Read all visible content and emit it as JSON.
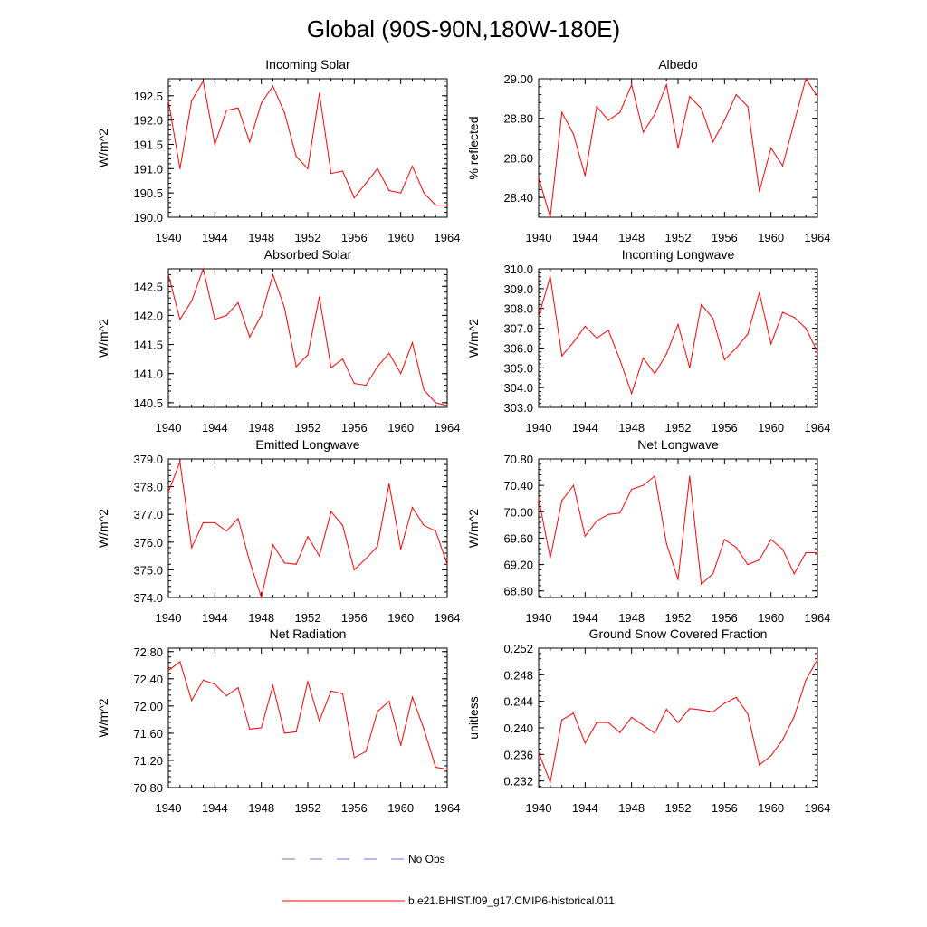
{
  "figure_title": "Global (90S-90N,180W-180E)",
  "colors": {
    "model_line": "#ff0000",
    "obs_line": "#6677cc",
    "axes": "#000000"
  },
  "legend": {
    "obs_label": "No Obs",
    "model_label": "b.e21.BHIST.f09_g17.CMIP6-historical.011"
  },
  "chart_data": [
    {
      "type": "line",
      "title": "Incoming Solar",
      "ylabel": "W/m^2",
      "xlim": [
        1940,
        1964
      ],
      "ylim": [
        190.0,
        192.85
      ],
      "xticks": [
        "1940",
        "1944",
        "1948",
        "1952",
        "1956",
        "1960",
        "1964"
      ],
      "yticks": [
        "190.0",
        "190.5",
        "191.0",
        "191.5",
        "192.0",
        "192.5"
      ],
      "x": [
        1940,
        1941,
        1942,
        1943,
        1944,
        1945,
        1946,
        1947,
        1948,
        1949,
        1950,
        1951,
        1952,
        1953,
        1954,
        1955,
        1956,
        1957,
        1958,
        1959,
        1960,
        1961,
        1962,
        1963,
        1964
      ],
      "series": [
        {
          "values": [
            192.4,
            191.0,
            192.4,
            192.8,
            191.5,
            192.2,
            192.25,
            191.55,
            192.35,
            192.7,
            192.15,
            191.25,
            191.0,
            192.55,
            190.9,
            190.95,
            190.4,
            190.7,
            191.0,
            190.55,
            190.5,
            191.05,
            190.5,
            190.25,
            190.25
          ]
        }
      ]
    },
    {
      "type": "line",
      "title": "Albedo",
      "ylabel": "% reflected",
      "xlim": [
        1940,
        1964
      ],
      "ylim": [
        28.3,
        29.0
      ],
      "xticks": [
        "1940",
        "1944",
        "1948",
        "1952",
        "1956",
        "1960",
        "1964"
      ],
      "yticks": [
        "28.40",
        "28.60",
        "28.80",
        "29.00"
      ],
      "x": [
        1940,
        1941,
        1942,
        1943,
        1944,
        1945,
        1946,
        1947,
        1948,
        1949,
        1950,
        1951,
        1952,
        1953,
        1954,
        1955,
        1956,
        1957,
        1958,
        1959,
        1960,
        1961,
        1962,
        1963,
        1964
      ],
      "series": [
        {
          "values": [
            28.5,
            28.3,
            28.83,
            28.72,
            28.51,
            28.86,
            28.79,
            28.83,
            28.97,
            28.73,
            28.82,
            28.97,
            28.65,
            28.91,
            28.85,
            28.68,
            28.79,
            28.92,
            28.86,
            28.43,
            28.65,
            28.56,
            28.78,
            29.0,
            28.91
          ]
        }
      ]
    },
    {
      "type": "line",
      "title": "Absorbed Solar",
      "ylabel": "W/m^2",
      "xlim": [
        1940,
        1964
      ],
      "ylim": [
        140.42,
        142.8
      ],
      "xticks": [
        "1940",
        "1944",
        "1948",
        "1952",
        "1956",
        "1960",
        "1964"
      ],
      "yticks": [
        "140.5",
        "141.0",
        "141.5",
        "142.0",
        "142.5"
      ],
      "x": [
        1940,
        1941,
        1942,
        1943,
        1944,
        1945,
        1946,
        1947,
        1948,
        1949,
        1950,
        1951,
        1952,
        1953,
        1954,
        1955,
        1956,
        1957,
        1958,
        1959,
        1960,
        1961,
        1962,
        1963,
        1964
      ],
      "series": [
        {
          "values": [
            142.7,
            141.93,
            142.25,
            142.8,
            141.93,
            142.0,
            142.22,
            141.63,
            142.0,
            142.7,
            142.13,
            141.12,
            141.32,
            142.32,
            141.1,
            141.25,
            140.83,
            140.8,
            141.12,
            141.35,
            141.0,
            141.53,
            140.72,
            140.5,
            140.45
          ]
        }
      ]
    },
    {
      "type": "line",
      "title": "Incoming Longwave",
      "ylabel": "W/m^2",
      "xlim": [
        1940,
        1964
      ],
      "ylim": [
        303.0,
        310.0
      ],
      "xticks": [
        "1940",
        "1944",
        "1948",
        "1952",
        "1956",
        "1960",
        "1964"
      ],
      "yticks": [
        "303.0",
        "304.0",
        "305.0",
        "306.0",
        "307.0",
        "308.0",
        "309.0",
        "310.0"
      ],
      "x": [
        1940,
        1941,
        1942,
        1943,
        1944,
        1945,
        1946,
        1947,
        1948,
        1949,
        1950,
        1951,
        1952,
        1953,
        1954,
        1955,
        1956,
        1957,
        1958,
        1959,
        1960,
        1961,
        1962,
        1963,
        1964
      ],
      "series": [
        {
          "values": [
            307.6,
            309.6,
            305.6,
            306.3,
            307.1,
            306.5,
            306.9,
            305.4,
            303.7,
            305.5,
            304.7,
            305.7,
            307.2,
            305.0,
            308.2,
            307.5,
            305.4,
            306.0,
            306.7,
            308.8,
            306.2,
            307.8,
            307.55,
            307.0,
            305.8
          ]
        }
      ]
    },
    {
      "type": "line",
      "title": "Emitted Longwave",
      "ylabel": "W/m^2",
      "xlim": [
        1940,
        1964
      ],
      "ylim": [
        374.0,
        379.0
      ],
      "xticks": [
        "1940",
        "1944",
        "1948",
        "1952",
        "1956",
        "1960",
        "1964"
      ],
      "yticks": [
        "374.0",
        "375.0",
        "376.0",
        "377.0",
        "378.0",
        "379.0"
      ],
      "x": [
        1940,
        1941,
        1942,
        1943,
        1944,
        1945,
        1946,
        1947,
        1948,
        1949,
        1950,
        1951,
        1952,
        1953,
        1954,
        1955,
        1956,
        1957,
        1958,
        1959,
        1960,
        1961,
        1962,
        1963,
        1964
      ],
      "series": [
        {
          "values": [
            377.8,
            378.9,
            375.8,
            376.7,
            376.7,
            376.4,
            376.85,
            375.3,
            374.0,
            375.9,
            375.25,
            375.2,
            376.2,
            375.5,
            377.1,
            376.6,
            375.0,
            375.4,
            375.85,
            378.1,
            375.75,
            377.25,
            376.6,
            376.4,
            375.2
          ]
        }
      ]
    },
    {
      "type": "line",
      "title": "Net Longwave",
      "ylabel": "W/m^2",
      "xlim": [
        1940,
        1964
      ],
      "ylim": [
        68.7,
        70.8
      ],
      "xticks": [
        "1940",
        "1944",
        "1948",
        "1952",
        "1956",
        "1960",
        "1964"
      ],
      "yticks": [
        "68.80",
        "69.20",
        "69.60",
        "70.00",
        "70.40",
        "70.80"
      ],
      "x": [
        1940,
        1941,
        1942,
        1943,
        1944,
        1945,
        1946,
        1947,
        1948,
        1949,
        1950,
        1951,
        1952,
        1953,
        1954,
        1955,
        1956,
        1957,
        1958,
        1959,
        1960,
        1961,
        1962,
        1963,
        1964
      ],
      "series": [
        {
          "values": [
            70.2,
            69.3,
            70.17,
            70.4,
            69.63,
            69.86,
            69.96,
            69.98,
            70.34,
            70.4,
            70.54,
            69.52,
            68.97,
            70.54,
            68.9,
            69.06,
            69.58,
            69.46,
            69.2,
            69.27,
            69.58,
            69.43,
            69.06,
            69.38,
            69.38
          ]
        }
      ]
    },
    {
      "type": "line",
      "title": "Net Radiation",
      "ylabel": "W/m^2",
      "xlim": [
        1940,
        1964
      ],
      "ylim": [
        70.8,
        72.85
      ],
      "xticks": [
        "1940",
        "1944",
        "1948",
        "1952",
        "1956",
        "1960",
        "1964"
      ],
      "yticks": [
        "70.80",
        "71.20",
        "71.60",
        "72.00",
        "72.40",
        "72.80"
      ],
      "x": [
        1940,
        1941,
        1942,
        1943,
        1944,
        1945,
        1946,
        1947,
        1948,
        1949,
        1950,
        1951,
        1952,
        1953,
        1954,
        1955,
        1956,
        1957,
        1958,
        1959,
        1960,
        1961,
        1962,
        1963,
        1964
      ],
      "series": [
        {
          "values": [
            72.52,
            72.65,
            72.08,
            72.38,
            72.32,
            72.15,
            72.27,
            71.66,
            71.68,
            72.3,
            71.6,
            71.62,
            72.36,
            71.78,
            72.22,
            72.18,
            71.24,
            71.33,
            71.92,
            72.07,
            71.42,
            72.13,
            71.66,
            71.1,
            71.07
          ]
        }
      ]
    },
    {
      "type": "line",
      "title": "Ground Snow Covered Fraction",
      "ylabel": "unitless",
      "xlim": [
        1940,
        1964
      ],
      "ylim": [
        0.231,
        0.252
      ],
      "xticks": [
        "1940",
        "1944",
        "1948",
        "1952",
        "1956",
        "1960",
        "1964"
      ],
      "yticks": [
        "0.232",
        "0.236",
        "0.240",
        "0.244",
        "0.248",
        "0.252"
      ],
      "x": [
        1940,
        1941,
        1942,
        1943,
        1944,
        1945,
        1946,
        1947,
        1948,
        1949,
        1950,
        1951,
        1952,
        1953,
        1954,
        1955,
        1956,
        1957,
        1958,
        1959,
        1960,
        1961,
        1962,
        1963,
        1964
      ],
      "series": [
        {
          "values": [
            0.2363,
            0.2318,
            0.2412,
            0.2422,
            0.2377,
            0.2408,
            0.2408,
            0.2393,
            0.2416,
            0.2404,
            0.2392,
            0.2428,
            0.2408,
            0.2429,
            0.2427,
            0.2424,
            0.2437,
            0.2446,
            0.2421,
            0.2344,
            0.2358,
            0.2382,
            0.2417,
            0.2472,
            0.2503
          ]
        }
      ]
    }
  ]
}
